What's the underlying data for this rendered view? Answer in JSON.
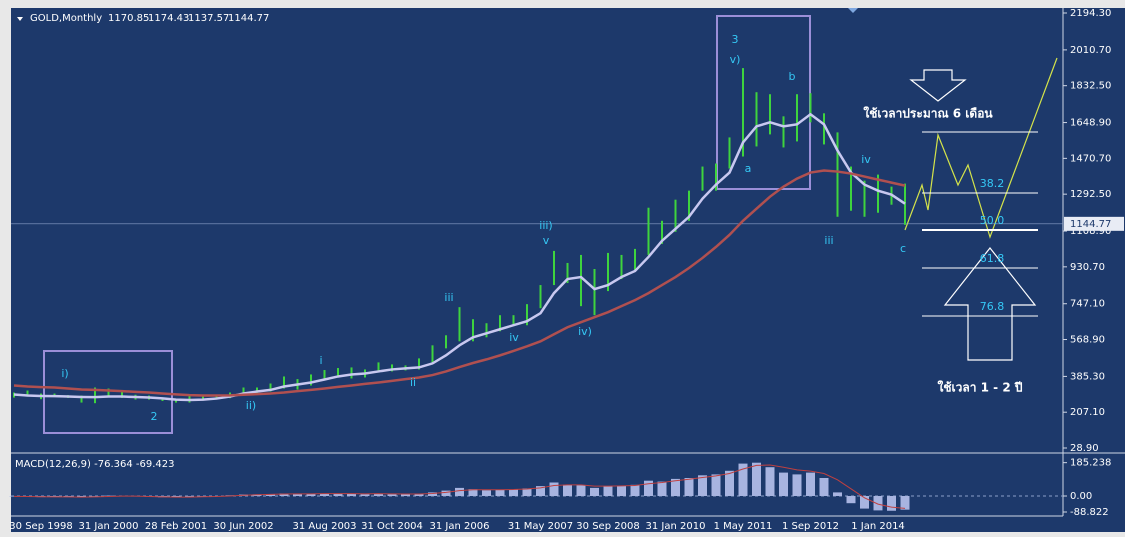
{
  "chart_data": [
    {
      "type": "ohlc",
      "title": "GOLD,Monthly",
      "header_values": [
        1170.85,
        1174.43,
        1137.57,
        1144.77
      ],
      "bid": 1144.77,
      "categories": [
        null,
        null,
        "30 Sep 1998",
        null,
        null,
        null,
        null,
        "31 Jan 2000",
        null,
        null,
        null,
        null,
        "28 Feb 2001",
        null,
        null,
        null,
        null,
        "30 Jun 2002",
        null,
        null,
        null,
        null,
        null,
        "31 Aug 2003",
        null,
        null,
        null,
        null,
        "31 Oct 2004",
        null,
        null,
        null,
        null,
        "31 Jan 2006",
        null,
        null,
        null,
        null,
        null,
        "31 May 2007",
        null,
        null,
        null,
        null,
        "30 Sep 2008",
        null,
        null,
        null,
        null,
        "31 Jan 2010",
        null,
        null,
        null,
        null,
        "1 May 2011",
        null,
        null,
        null,
        null,
        "1 Sep 2012",
        null,
        null,
        null,
        null,
        "1 Jan 2014",
        null,
        null
      ],
      "high": [
        305,
        315,
        300,
        300,
        292,
        290,
        330,
        325,
        316,
        294,
        290,
        275,
        272,
        295,
        293,
        290,
        305,
        330,
        330,
        350,
        385,
        372,
        395,
        417,
        427,
        430,
        420,
        455,
        445,
        440,
        475,
        540,
        590,
        730,
        670,
        650,
        690,
        690,
        745,
        840,
        1010,
        950,
        990,
        920,
        1000,
        990,
        1020,
        1225,
        1160,
        1265,
        1310,
        1430,
        1445,
        1575,
        1920,
        1800,
        1790,
        1680,
        1790,
        1795,
        1695,
        1600,
        1430,
        1360,
        1390,
        1330,
        1345
      ],
      "low": [
        280,
        285,
        272,
        285,
        278,
        255,
        252,
        285,
        278,
        270,
        270,
        263,
        255,
        255,
        265,
        272,
        277,
        300,
        302,
        310,
        325,
        320,
        340,
        370,
        390,
        375,
        380,
        410,
        410,
        415,
        420,
        455,
        525,
        560,
        560,
        580,
        610,
        640,
        640,
        725,
        840,
        850,
        735,
        690,
        810,
        870,
        910,
        990,
        1045,
        1105,
        1160,
        1310,
        1310,
        1420,
        1480,
        1530,
        1590,
        1525,
        1555,
        1650,
        1540,
        1180,
        1210,
        1180,
        1200,
        1240,
        1140
      ],
      "series": [
        {
          "color": "#c8c8f0",
          "values": [
            295,
            290,
            288,
            287,
            285,
            283,
            282,
            285,
            285,
            283,
            280,
            276,
            270,
            268,
            270,
            275,
            285,
            300,
            310,
            318,
            335,
            345,
            355,
            370,
            385,
            395,
            400,
            410,
            420,
            425,
            430,
            450,
            490,
            540,
            580,
            600,
            620,
            640,
            660,
            700,
            800,
            870,
            880,
            820,
            840,
            880,
            910,
            980,
            1060,
            1120,
            1180,
            1270,
            1340,
            1400,
            1550,
            1630,
            1650,
            1630,
            1640,
            1690,
            1640,
            1510,
            1400,
            1340,
            1310,
            1290,
            1245
          ]
        },
        {
          "color": "#b05050",
          "values": [
            340,
            335,
            332,
            330,
            325,
            320,
            318,
            315,
            312,
            308,
            305,
            300,
            296,
            292,
            290,
            290,
            291,
            294,
            297,
            300,
            305,
            312,
            318,
            325,
            333,
            340,
            348,
            355,
            363,
            372,
            380,
            392,
            410,
            432,
            452,
            470,
            490,
            512,
            535,
            560,
            595,
            630,
            655,
            680,
            705,
            735,
            765,
            800,
            840,
            880,
            925,
            975,
            1030,
            1090,
            1160,
            1220,
            1280,
            1330,
            1370,
            1400,
            1410,
            1405,
            1395,
            1380,
            1365,
            1350,
            1335
          ]
        }
      ],
      "bar_color": "#3ed43e",
      "ylim": [
        28.9,
        2194.3
      ],
      "yticks": [
        {
          "value": 2194.3,
          "label": "2194.30"
        },
        {
          "value": 2010.7,
          "label": "2010.70"
        },
        {
          "value": 1832.5,
          "label": "1832.50"
        },
        {
          "value": 1648.9,
          "label": "1648.90"
        },
        {
          "value": 1470.7,
          "label": "1470.70"
        },
        {
          "value": 1292.5,
          "label": "1292.50"
        },
        {
          "value": 1108.9,
          "label": "1108.90"
        },
        {
          "value": 930.7,
          "label": "930.70"
        },
        {
          "value": 747.1,
          "label": "747.10"
        },
        {
          "value": 568.9,
          "label": "568.90"
        },
        {
          "value": 385.3,
          "label": "385.30"
        },
        {
          "value": 207.1,
          "label": "207.10"
        },
        {
          "value": 28.9,
          "label": "28.90"
        }
      ],
      "annotations": [
        "3",
        "v)",
        "b",
        "a",
        "iv",
        "iii",
        "c",
        "iii)",
        "v",
        "iii",
        "iv",
        "iv)",
        "i",
        "ii",
        "ii)",
        "i)",
        "2"
      ],
      "notes": [
        "ใช้เวลาประมาณ  6 เดือน",
        "ใช้เวลา  1 - 2  ปี"
      ],
      "fib_labels": [
        "38.2",
        "50.0",
        "61.8",
        "76.8"
      ],
      "fib_prices": [
        1602,
        1298,
        1114,
        925,
        686
      ]
    },
    {
      "type": "macd",
      "title": "MACD(12,26,9) -76.364 -69.423",
      "values": [
        -3,
        -4,
        -6,
        -5,
        -6,
        -8,
        -2,
        2,
        0,
        -3,
        -5,
        -7,
        -8,
        -4,
        -2,
        -1,
        4,
        8,
        9,
        10,
        14,
        10,
        12,
        14,
        14,
        12,
        10,
        14,
        10,
        9,
        12,
        20,
        30,
        45,
        38,
        32,
        36,
        36,
        42,
        55,
        75,
        62,
        60,
        45,
        55,
        58,
        62,
        85,
        80,
        95,
        100,
        115,
        120,
        140,
        180,
        185,
        160,
        130,
        120,
        130,
        100,
        20,
        -40,
        -70,
        -80,
        -82,
        -76
      ],
      "signal": [
        -2,
        -3,
        -4,
        -5,
        -5,
        -6,
        -5,
        -3,
        -1,
        -1,
        -3,
        -5,
        -6,
        -6,
        -4,
        -3,
        0,
        4,
        7,
        9,
        11,
        12,
        12,
        13,
        13,
        13,
        12,
        13,
        12,
        11,
        11,
        14,
        20,
        30,
        35,
        35,
        35,
        36,
        39,
        45,
        58,
        62,
        62,
        55,
        55,
        56,
        58,
        68,
        75,
        85,
        93,
        103,
        112,
        125,
        150,
        170,
        172,
        160,
        145,
        138,
        125,
        90,
        40,
        -10,
        -45,
        -62,
        -69
      ],
      "color": "#a8b4e0",
      "signal_color": "#c04040",
      "ylim": [
        -100,
        200
      ],
      "yticks": [
        185.238,
        {
          "value": 0,
          "label": "0.00"
        },
        -88.822
      ]
    }
  ]
}
